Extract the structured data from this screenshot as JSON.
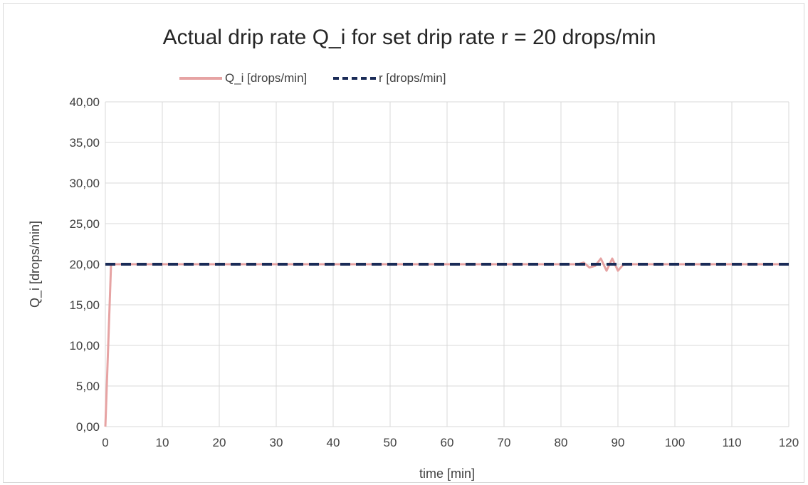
{
  "chart_data": {
    "type": "line",
    "title": "Actual drip rate Q_i for set drip rate r = 20 drops/min",
    "xlabel": "time [min]",
    "ylabel": "Q_i [drops/min]",
    "xlim": [
      0,
      120
    ],
    "ylim": [
      0,
      40
    ],
    "x_ticks": [
      "0",
      "10",
      "20",
      "30",
      "40",
      "50",
      "60",
      "70",
      "80",
      "90",
      "100",
      "110",
      "120"
    ],
    "y_ticks": [
      "0,00",
      "5,00",
      "10,00",
      "15,00",
      "20,00",
      "25,00",
      "30,00",
      "35,00",
      "40,00"
    ],
    "grid": true,
    "legend_position": "top-left",
    "series": [
      {
        "name": "Q_i [drops/min]",
        "color": "#e6a3a3",
        "style": "solid",
        "x": [
          0,
          1,
          2,
          10,
          20,
          30,
          40,
          50,
          60,
          70,
          80,
          83,
          84,
          85,
          86,
          87,
          88,
          89,
          90,
          91,
          100,
          110,
          120
        ],
        "y": [
          0,
          20,
          20,
          20,
          20,
          20,
          20,
          20,
          20,
          20,
          20,
          20,
          20.2,
          19.6,
          19.8,
          20.7,
          19.2,
          20.7,
          19.2,
          20,
          20,
          20,
          20
        ]
      },
      {
        "name": "r [drops/min]",
        "color": "#1a2b57",
        "style": "dashed",
        "x": [
          0,
          120
        ],
        "y": [
          20,
          20
        ]
      }
    ]
  }
}
